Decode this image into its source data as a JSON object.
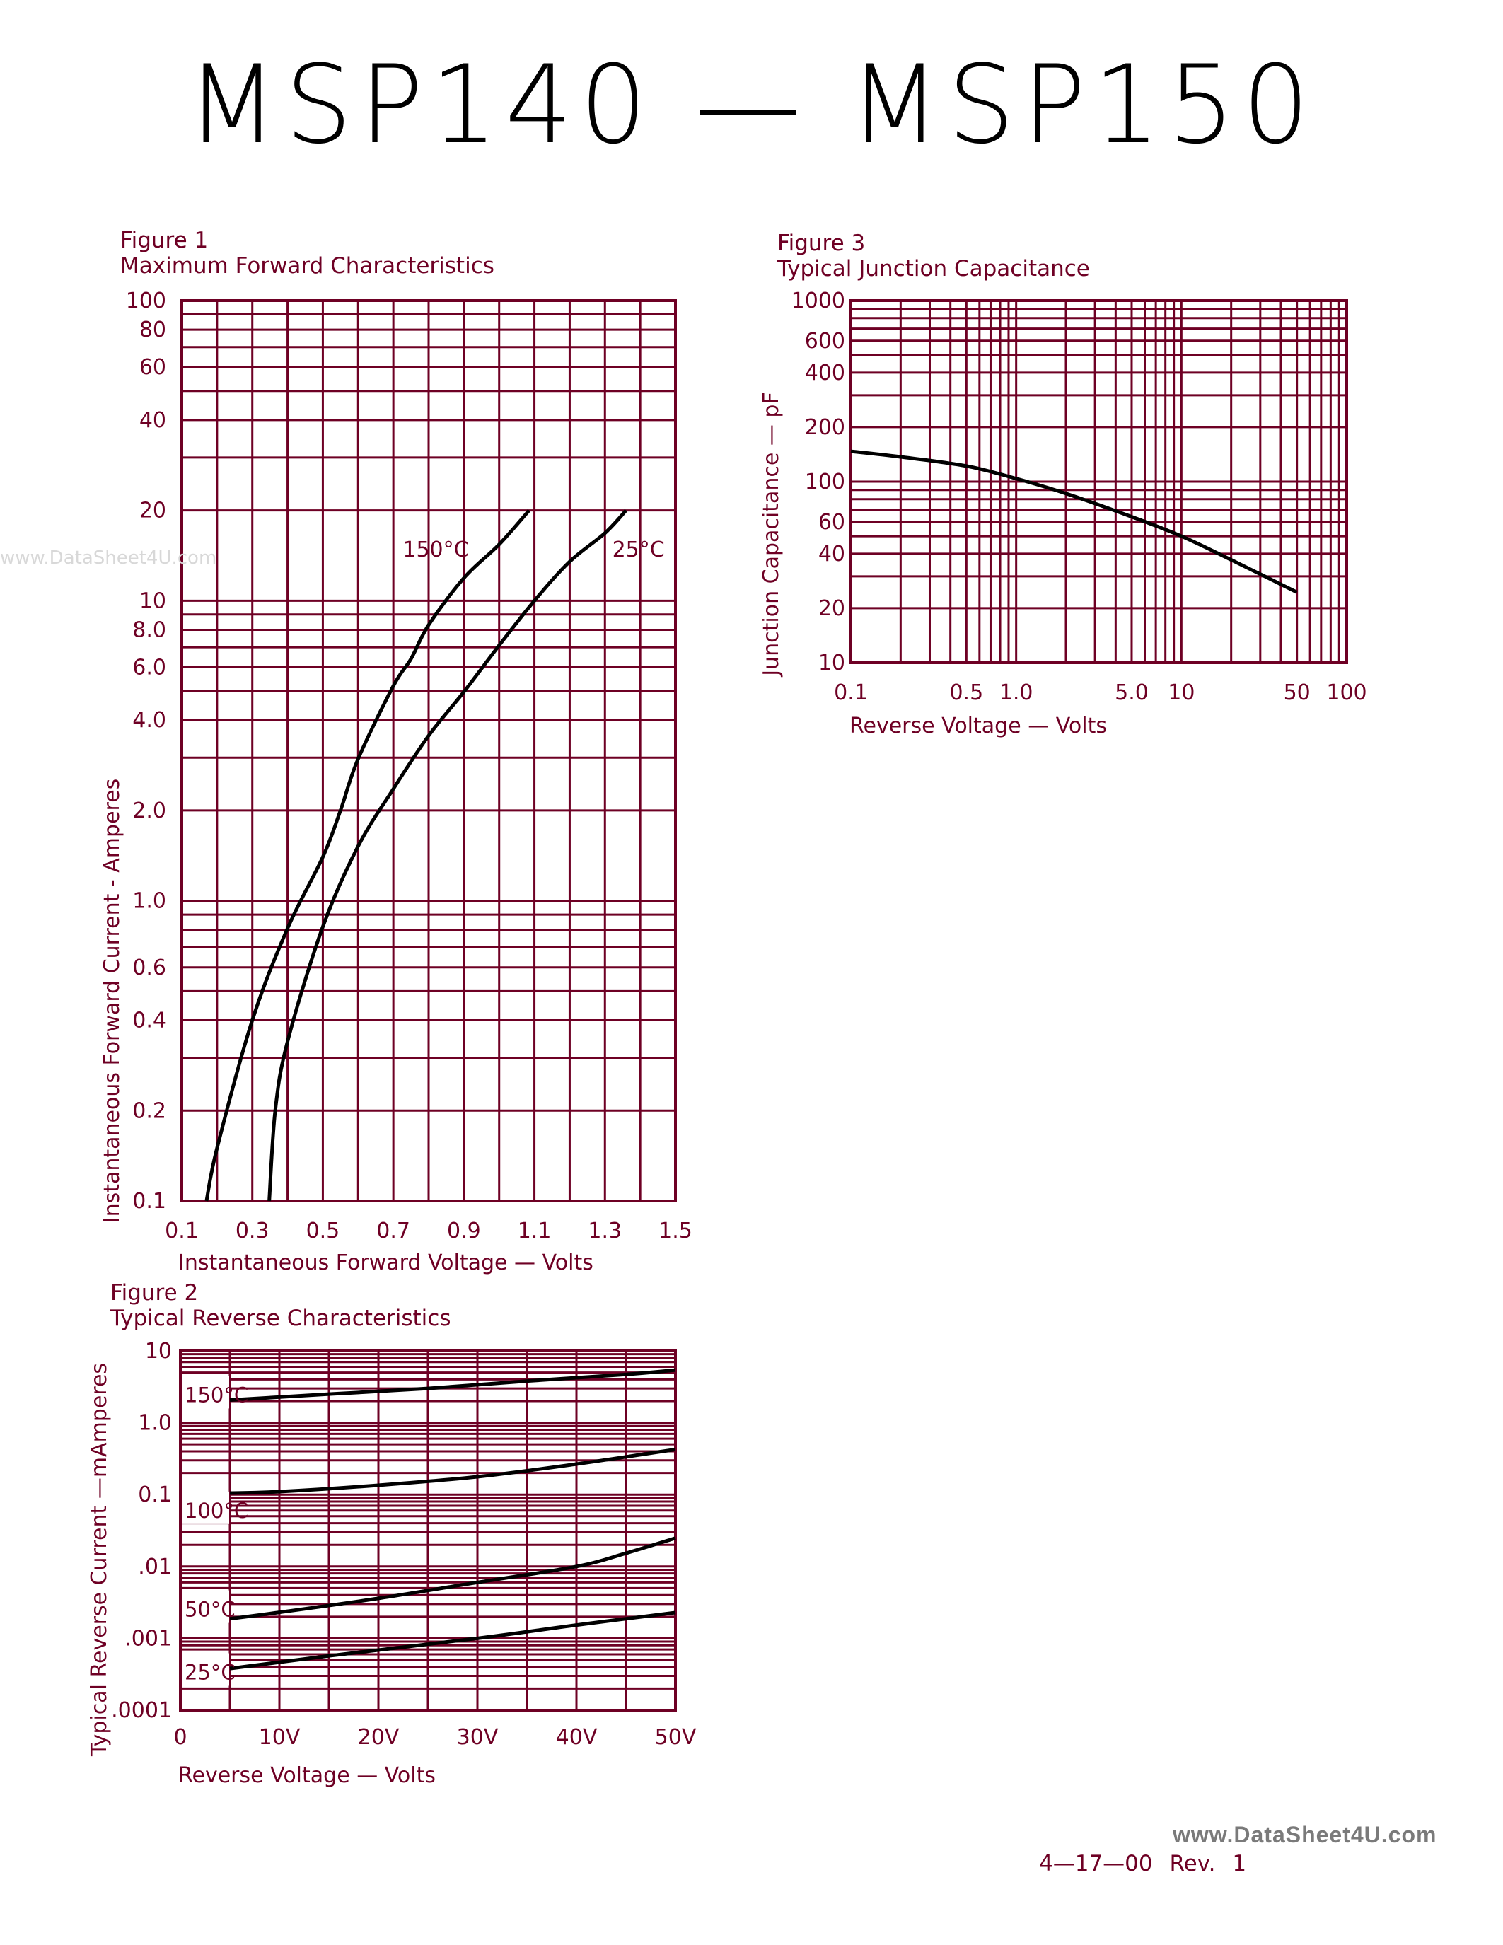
{
  "header": {
    "title": "MSP140  —  MSP150"
  },
  "watermarks": {
    "left": "www.DataSheet4U.com",
    "footer": "www.DataSheet4U.com"
  },
  "footer": {
    "date": "4—17—00",
    "revision": "Rev.  1"
  },
  "colors": {
    "grid": "#6e0024",
    "curve": "#000000",
    "text": "#6e0024"
  },
  "chart_data": [
    {
      "figure_label": "Figure 1",
      "type": "line",
      "title": "Maximum Forward Characteristics",
      "xlabel": "Instantaneous Forward Voltage — Volts",
      "ylabel": "Instantaneous Forward Current - Amperes",
      "x_scale": "linear",
      "y_scale": "log",
      "xlim": [
        0.1,
        1.5
      ],
      "ylim": [
        0.1,
        100
      ],
      "grid": true,
      "x_ticks": [
        {
          "v": 0.1,
          "label": "0.1"
        },
        {
          "v": 0.3,
          "label": "0.3"
        },
        {
          "v": 0.5,
          "label": "0.5"
        },
        {
          "v": 0.7,
          "label": "0.7"
        },
        {
          "v": 0.9,
          "label": "0.9"
        },
        {
          "v": 1.1,
          "label": "1.1"
        },
        {
          "v": 1.3,
          "label": "1.3"
        },
        {
          "v": 1.5,
          "label": "1.5"
        }
      ],
      "y_ticks": [
        {
          "v": 100,
          "label": "100"
        },
        {
          "v": 80,
          "label": "80"
        },
        {
          "v": 60,
          "label": "60"
        },
        {
          "v": 40,
          "label": "40"
        },
        {
          "v": 20,
          "label": "20"
        },
        {
          "v": 10,
          "label": "10"
        },
        {
          "v": 8,
          "label": "8.0"
        },
        {
          "v": 6,
          "label": "6.0"
        },
        {
          "v": 4,
          "label": "4.0"
        },
        {
          "v": 2,
          "label": "2.0"
        },
        {
          "v": 1,
          "label": "1.0"
        },
        {
          "v": 0.6,
          "label": "0.6"
        },
        {
          "v": 0.4,
          "label": "0.4"
        },
        {
          "v": 0.2,
          "label": "0.2"
        },
        {
          "v": 0.1,
          "label": "0.1"
        }
      ],
      "series": [
        {
          "name": "150°C",
          "label_at": [
            0.82,
            14.9
          ],
          "points": [
            [
              0.17,
              0.1
            ],
            [
              0.2,
              0.15
            ],
            [
              0.3,
              0.4
            ],
            [
              0.4,
              0.81
            ],
            [
              0.5,
              1.4
            ],
            [
              0.55,
              2.0
            ],
            [
              0.6,
              2.97
            ],
            [
              0.7,
              5.2
            ],
            [
              0.75,
              6.4
            ],
            [
              0.8,
              8.3
            ],
            [
              0.9,
              11.9
            ],
            [
              1.0,
              15.4
            ],
            [
              1.085,
              20
            ]
          ]
        },
        {
          "name": "25°C",
          "label_at": [
            1.395,
            14.9
          ],
          "points": [
            [
              0.348,
              0.1
            ],
            [
              0.365,
              0.2
            ],
            [
              0.4,
              0.34
            ],
            [
              0.5,
              0.82
            ],
            [
              0.6,
              1.52
            ],
            [
              0.7,
              2.36
            ],
            [
              0.8,
              3.55
            ],
            [
              0.9,
              4.97
            ],
            [
              1.0,
              7.1
            ],
            [
              1.1,
              10
            ],
            [
              1.2,
              13.5
            ],
            [
              1.3,
              16.8
            ],
            [
              1.36,
              20
            ]
          ]
        }
      ]
    },
    {
      "figure_label": "Figure 2",
      "type": "line",
      "title": "Typical Reverse Characteristics",
      "xlabel": "Reverse Voltage — Volts",
      "ylabel": "Typical Reverse Current —mAmperes",
      "x_scale": "linear",
      "y_scale": "log",
      "xlim": [
        0,
        50
      ],
      "ylim": [
        0.0001,
        10
      ],
      "grid": true,
      "x_ticks": [
        {
          "v": 0,
          "label": "0"
        },
        {
          "v": 10,
          "label": "10V"
        },
        {
          "v": 20,
          "label": "20V"
        },
        {
          "v": 30,
          "label": "30V"
        },
        {
          "v": 40,
          "label": "40V"
        },
        {
          "v": 50,
          "label": "50V"
        }
      ],
      "y_ticks": [
        {
          "v": 10,
          "label": "10"
        },
        {
          "v": 1,
          "label": "1.0"
        },
        {
          "v": 0.1,
          "label": "0.1"
        },
        {
          "v": 0.01,
          "label": ".01"
        },
        {
          "v": 0.001,
          "label": ".001"
        },
        {
          "v": 0.0001,
          "label": ".0001"
        }
      ],
      "series": [
        {
          "name": "150°C",
          "label_at": [
            0,
            2.6
          ],
          "points": [
            [
              5,
              2.07
            ],
            [
              15,
              2.5
            ],
            [
              25,
              3.0
            ],
            [
              35,
              3.8
            ],
            [
              45,
              4.7
            ],
            [
              50,
              5.4
            ]
          ]
        },
        {
          "name": "100°C",
          "label_at": [
            0,
            0.064
          ],
          "points": [
            [
              5,
              0.105
            ],
            [
              10,
              0.11
            ],
            [
              20,
              0.135
            ],
            [
              30,
              0.177
            ],
            [
              40,
              0.266
            ],
            [
              50,
              0.425
            ]
          ]
        },
        {
          "name": "50°C",
          "label_at": [
            0,
            0.0027
          ],
          "points": [
            [
              5,
              0.00187
            ],
            [
              10,
              0.0023
            ],
            [
              20,
              0.0036
            ],
            [
              30,
              0.006
            ],
            [
              40,
              0.01
            ],
            [
              45,
              0.0153
            ],
            [
              50,
              0.0248
            ]
          ]
        },
        {
          "name": "25°C",
          "label_at": [
            0,
            0.00036
          ],
          "points": [
            [
              5,
              0.00038
            ],
            [
              15,
              0.00057
            ],
            [
              30,
              0.001
            ],
            [
              40,
              0.00153
            ],
            [
              50,
              0.00228
            ]
          ]
        }
      ]
    },
    {
      "figure_label": "Figure 3",
      "type": "line",
      "title": "Typical Junction Capacitance",
      "xlabel": "Reverse Voltage — Volts",
      "ylabel": "Junction Capacitance — pF",
      "x_scale": "log",
      "y_scale": "log",
      "xlim": [
        0.1,
        100
      ],
      "ylim": [
        10,
        1000
      ],
      "grid": true,
      "x_ticks": [
        {
          "v": 0.1,
          "label": "0.1"
        },
        {
          "v": 0.5,
          "label": "0.5"
        },
        {
          "v": 1,
          "label": "1.0"
        },
        {
          "v": 5,
          "label": "5.0"
        },
        {
          "v": 10,
          "label": "10"
        },
        {
          "v": 50,
          "label": "50"
        },
        {
          "v": 100,
          "label": "100"
        }
      ],
      "y_ticks": [
        {
          "v": 1000,
          "label": "1000"
        },
        {
          "v": 600,
          "label": "600"
        },
        {
          "v": 400,
          "label": "400"
        },
        {
          "v": 200,
          "label": "200"
        },
        {
          "v": 100,
          "label": "100"
        },
        {
          "v": 60,
          "label": "60"
        },
        {
          "v": 40,
          "label": "40"
        },
        {
          "v": 20,
          "label": "20"
        },
        {
          "v": 10,
          "label": "10"
        }
      ],
      "series": [
        {
          "points": [
            [
              0.1,
              147
            ],
            [
              0.2,
              137
            ],
            [
              0.5,
              122
            ],
            [
              1,
              104
            ],
            [
              2,
              86
            ],
            [
              5,
              64
            ],
            [
              10,
              50
            ],
            [
              20,
              37
            ],
            [
              50,
              24.5
            ]
          ]
        }
      ]
    }
  ]
}
